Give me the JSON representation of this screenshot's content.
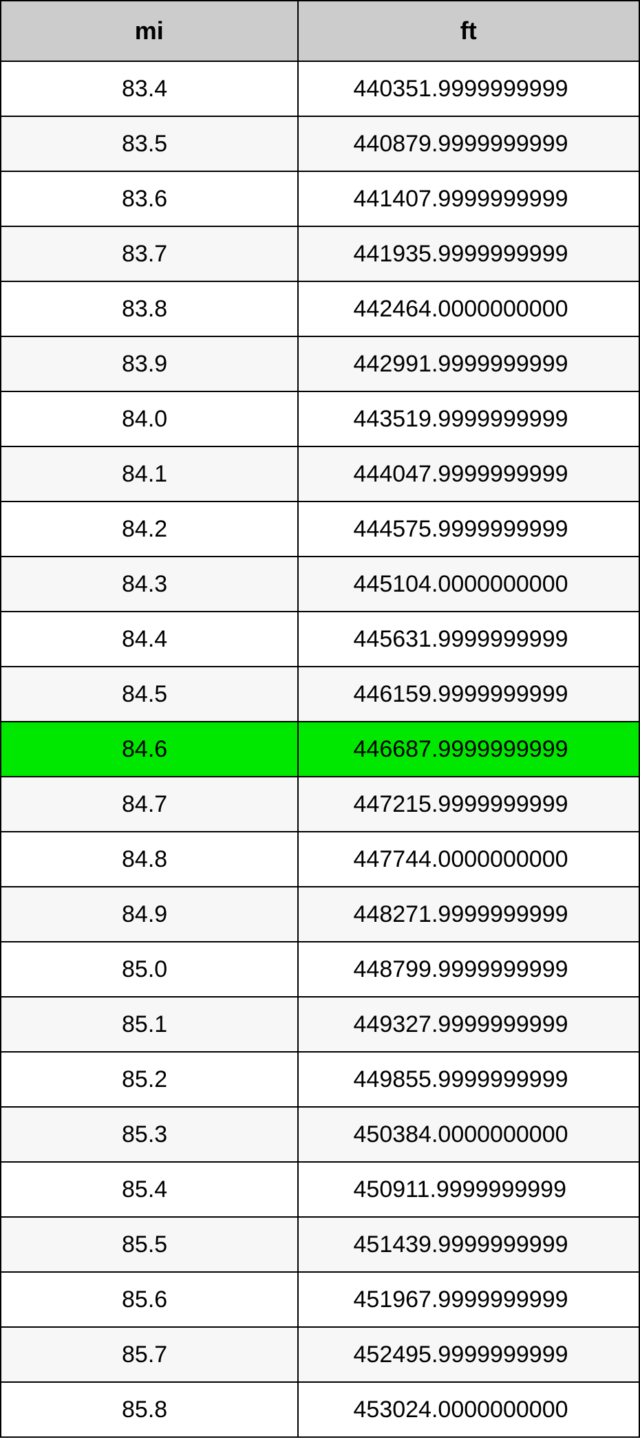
{
  "table": {
    "columns": [
      "mi",
      "ft"
    ],
    "header_bg": "#cccccc",
    "row_alt_bg": "#f7f7f7",
    "highlight_bg": "#00e800",
    "border_color": "#000000",
    "font_family": "Arial",
    "header_fontsize": 36,
    "cell_fontsize": 34,
    "highlight_index": 12,
    "rows": [
      {
        "mi": "83.4",
        "ft": "440351.9999999999"
      },
      {
        "mi": "83.5",
        "ft": "440879.9999999999"
      },
      {
        "mi": "83.6",
        "ft": "441407.9999999999"
      },
      {
        "mi": "83.7",
        "ft": "441935.9999999999"
      },
      {
        "mi": "83.8",
        "ft": "442464.0000000000"
      },
      {
        "mi": "83.9",
        "ft": "442991.9999999999"
      },
      {
        "mi": "84.0",
        "ft": "443519.9999999999"
      },
      {
        "mi": "84.1",
        "ft": "444047.9999999999"
      },
      {
        "mi": "84.2",
        "ft": "444575.9999999999"
      },
      {
        "mi": "84.3",
        "ft": "445104.0000000000"
      },
      {
        "mi": "84.4",
        "ft": "445631.9999999999"
      },
      {
        "mi": "84.5",
        "ft": "446159.9999999999"
      },
      {
        "mi": "84.6",
        "ft": "446687.9999999999"
      },
      {
        "mi": "84.7",
        "ft": "447215.9999999999"
      },
      {
        "mi": "84.8",
        "ft": "447744.0000000000"
      },
      {
        "mi": "84.9",
        "ft": "448271.9999999999"
      },
      {
        "mi": "85.0",
        "ft": "448799.9999999999"
      },
      {
        "mi": "85.1",
        "ft": "449327.9999999999"
      },
      {
        "mi": "85.2",
        "ft": "449855.9999999999"
      },
      {
        "mi": "85.3",
        "ft": "450384.0000000000"
      },
      {
        "mi": "85.4",
        "ft": "450911.9999999999"
      },
      {
        "mi": "85.5",
        "ft": "451439.9999999999"
      },
      {
        "mi": "85.6",
        "ft": "451967.9999999999"
      },
      {
        "mi": "85.7",
        "ft": "452495.9999999999"
      },
      {
        "mi": "85.8",
        "ft": "453024.0000000000"
      }
    ]
  }
}
